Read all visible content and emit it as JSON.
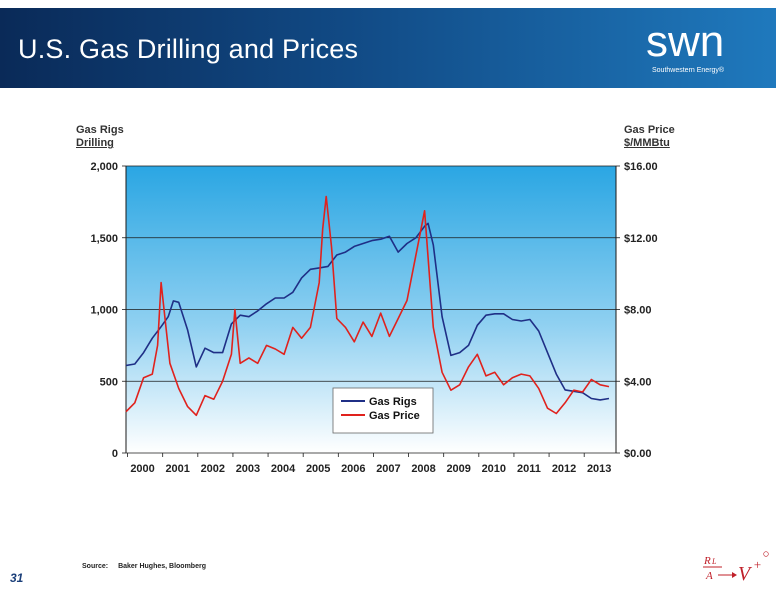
{
  "header": {
    "title": "U.S. Gas Drilling and Prices",
    "logo_text": "swn",
    "logo_subtext": "Southwestern Energy®"
  },
  "axes": {
    "left_title_line1": "Gas Rigs",
    "left_title_line2": "Drilling",
    "right_title_line1": "Gas Price",
    "right_title_line2": "$/MMBtu"
  },
  "footer": {
    "page_number": "31",
    "source_label": "Source:",
    "source_value": "Baker Hughes, Bloomberg"
  },
  "colors": {
    "rigs": "#1f2f86",
    "price": "#e0221d",
    "header_dark": "#0a2a58",
    "header_light": "#1f79bd"
  },
  "chart_data": {
    "type": "line",
    "x_tick_labels": [
      "2000",
      "2001",
      "2002",
      "2003",
      "2004",
      "2005",
      "2006",
      "2007",
      "2008",
      "2009",
      "2010",
      "2011",
      "2012",
      "2013"
    ],
    "y_left_ticks": [
      "2,000",
      "1,500",
      "1,000",
      "500",
      "0"
    ],
    "y_right_ticks": [
      "$16.00",
      "$12.00",
      "$8.00",
      "$4.00",
      "$0.00"
    ],
    "ylim_left": [
      0,
      2000
    ],
    "ylim_right": [
      0,
      16
    ],
    "grid": true,
    "legend_position": "bottom-center",
    "series": [
      {
        "name": "Gas Rigs",
        "axis": "left",
        "x": [
          2000.0,
          2000.25,
          2000.5,
          2000.75,
          2001.0,
          2001.2,
          2001.35,
          2001.5,
          2001.75,
          2002.0,
          2002.25,
          2002.5,
          2002.75,
          2003.0,
          2003.25,
          2003.5,
          2003.75,
          2004.0,
          2004.25,
          2004.5,
          2004.75,
          2005.0,
          2005.25,
          2005.5,
          2005.75,
          2006.0,
          2006.25,
          2006.5,
          2006.75,
          2007.0,
          2007.25,
          2007.5,
          2007.75,
          2008.0,
          2008.25,
          2008.5,
          2008.6,
          2008.75,
          2009.0,
          2009.25,
          2009.5,
          2009.75,
          2010.0,
          2010.25,
          2010.5,
          2010.75,
          2011.0,
          2011.25,
          2011.5,
          2011.75,
          2012.0,
          2012.25,
          2012.5,
          2012.75,
          2013.0,
          2013.25,
          2013.5,
          2013.75
        ],
        "y": [
          610,
          620,
          700,
          800,
          880,
          950,
          1060,
          1050,
          860,
          600,
          730,
          700,
          700,
          900,
          960,
          950,
          990,
          1040,
          1080,
          1080,
          1120,
          1220,
          1280,
          1290,
          1300,
          1380,
          1400,
          1440,
          1460,
          1480,
          1490,
          1510,
          1400,
          1460,
          1500,
          1580,
          1600,
          1450,
          950,
          680,
          700,
          750,
          890,
          960,
          970,
          970,
          930,
          920,
          930,
          850,
          700,
          550,
          440,
          430,
          420,
          380,
          370,
          380
        ]
      },
      {
        "name": "Gas Price",
        "axis": "right",
        "x": [
          2000.0,
          2000.25,
          2000.5,
          2000.75,
          2000.9,
          2001.0,
          2001.25,
          2001.5,
          2001.75,
          2002.0,
          2002.25,
          2002.5,
          2002.75,
          2003.0,
          2003.1,
          2003.25,
          2003.5,
          2003.75,
          2004.0,
          2004.25,
          2004.5,
          2004.75,
          2005.0,
          2005.25,
          2005.5,
          2005.6,
          2005.7,
          2005.85,
          2006.0,
          2006.25,
          2006.5,
          2006.75,
          2007.0,
          2007.25,
          2007.5,
          2007.75,
          2008.0,
          2008.25,
          2008.5,
          2008.75,
          2009.0,
          2009.25,
          2009.5,
          2009.75,
          2010.0,
          2010.25,
          2010.5,
          2010.75,
          2011.0,
          2011.25,
          2011.5,
          2011.75,
          2012.0,
          2012.25,
          2012.5,
          2012.75,
          2013.0,
          2013.25,
          2013.5,
          2013.75
        ],
        "y": [
          2.3,
          2.8,
          4.2,
          4.4,
          6.0,
          9.5,
          5.0,
          3.6,
          2.6,
          2.1,
          3.2,
          3.0,
          4.0,
          5.5,
          8.0,
          5.0,
          5.3,
          5.0,
          6.0,
          5.8,
          5.5,
          7.0,
          6.4,
          7.0,
          9.5,
          12.5,
          14.3,
          11.5,
          7.5,
          7.0,
          6.2,
          7.3,
          6.5,
          7.8,
          6.5,
          7.5,
          8.5,
          11.0,
          13.5,
          7.0,
          4.5,
          3.5,
          3.8,
          4.8,
          5.5,
          4.3,
          4.5,
          3.8,
          4.2,
          4.4,
          4.3,
          3.6,
          2.5,
          2.2,
          2.8,
          3.5,
          3.4,
          4.1,
          3.8,
          3.7
        ]
      }
    ]
  }
}
